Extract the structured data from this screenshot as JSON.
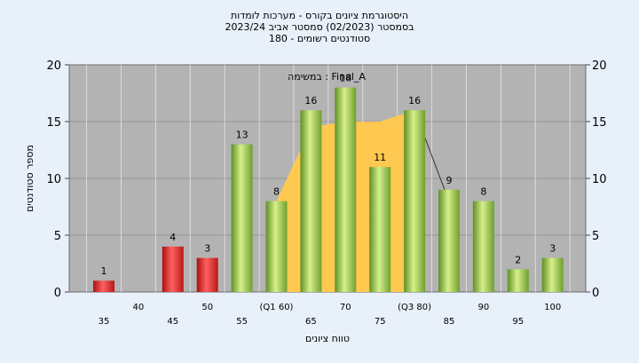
{
  "chart_data": {
    "type": "bar",
    "title_lines": [
      "היסטוגרמת ציונים בקורס - מערכות לומדות",
      "בסמסטר  (02/2023)  סמסטר אביב 2023/24",
      "סטודנטים רשומים - 180"
    ],
    "xlabel": "טווח ציונים",
    "ylabel": "מספר סטודנטים",
    "ylim": [
      0,
      20
    ],
    "yticks": [
      0,
      5,
      10,
      15,
      20
    ],
    "grid": true,
    "annotation": "במשימה : Final_A",
    "categories": [
      "35",
      "40",
      "45",
      "50",
      "55",
      "(Q1 60)",
      "65",
      "70",
      "75",
      "(Q3 80)",
      "85",
      "90",
      "95",
      "100"
    ],
    "values": [
      1,
      0,
      4,
      3,
      13,
      8,
      16,
      18,
      11,
      16,
      9,
      8,
      2,
      3
    ],
    "value_labels": [
      "1",
      "",
      "4",
      "3",
      "13",
      "8",
      "16",
      "18",
      "11",
      "16",
      "9",
      "8",
      "2",
      "3"
    ],
    "quartile_band": {
      "from_category": "(Q1 60)",
      "to_category": "(Q3 80)",
      "values": [
        8,
        14.5,
        15,
        15,
        16
      ]
    },
    "colors": {
      "fail": "#e02020",
      "pass": "#8fc04a",
      "band": "#ffc850",
      "plot_bg": "#b3b3b3",
      "page_bg": "#e8f0fa"
    },
    "fail_threshold": 50
  }
}
